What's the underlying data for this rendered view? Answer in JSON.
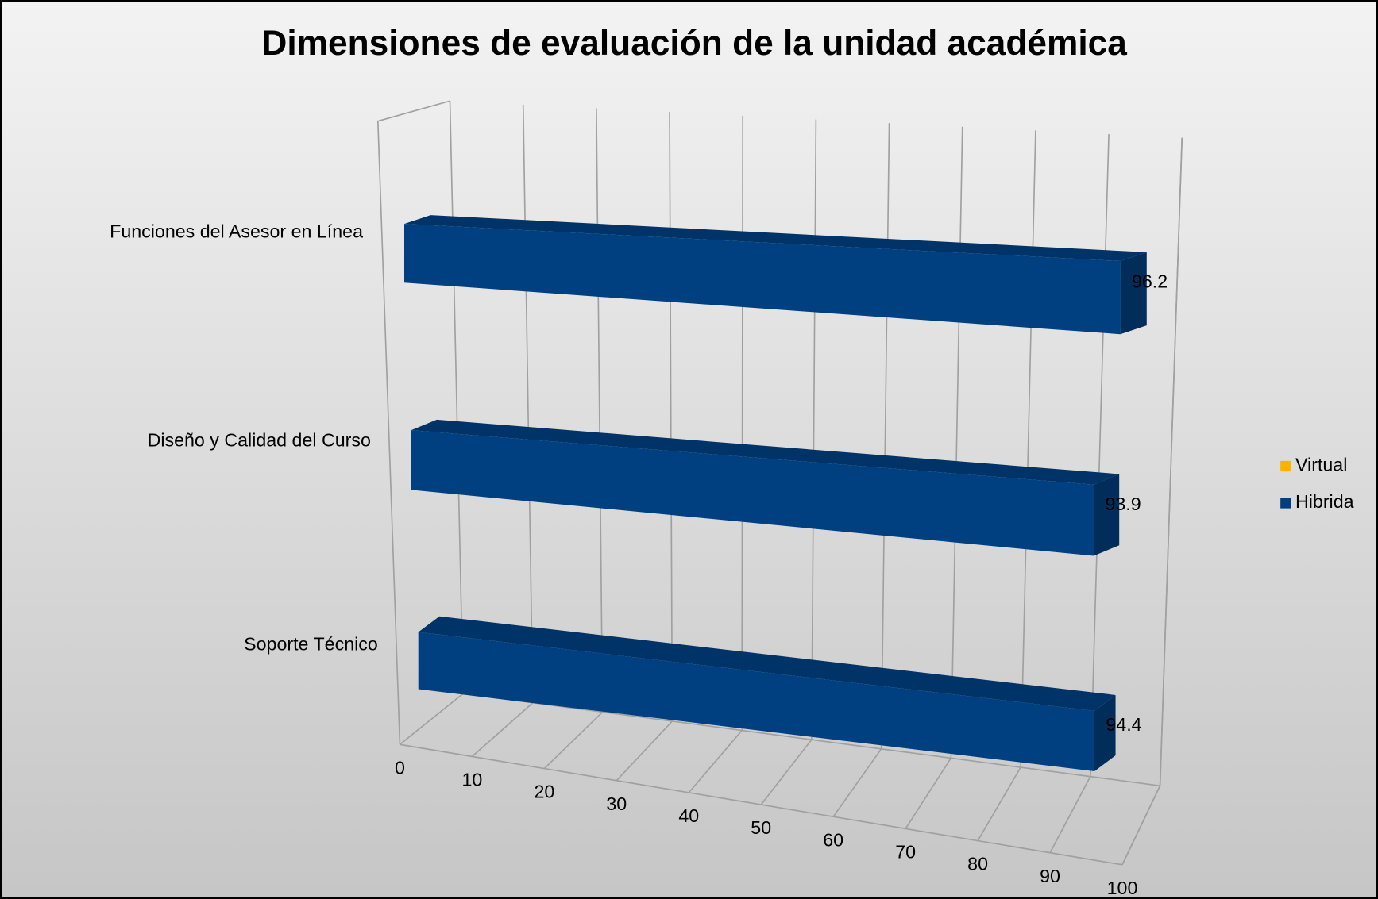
{
  "chart_data": {
    "type": "bar3d",
    "orientation": "horizontal",
    "title": "Dimensiones de evaluación de la unidad académica",
    "categories": [
      "Funciones del Asesor en Línea",
      "Diseño y Calidad del Curso",
      "Soporte Técnico"
    ],
    "series": [
      {
        "name": "Virtual",
        "color": "#ffb000",
        "values": [
          null,
          null,
          null
        ]
      },
      {
        "name": "Hibrida",
        "color": "#004080",
        "values": [
          96.2,
          93.9,
          94.4
        ]
      }
    ],
    "xlim": [
      0,
      100
    ],
    "xticks": [
      0,
      10,
      20,
      30,
      40,
      50,
      60,
      70,
      80,
      90,
      100
    ],
    "grid": true,
    "legend": "right"
  }
}
